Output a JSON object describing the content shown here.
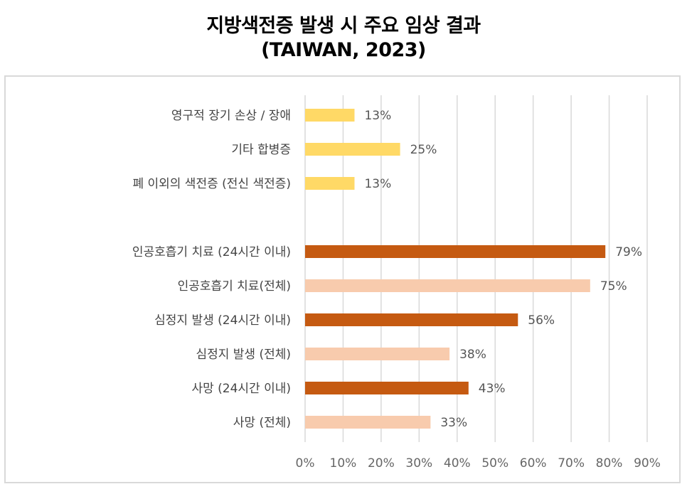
{
  "title_line1": "지방색전증 발생 시 주요 임상 결과",
  "title_line2": "(TAIWAN, 2023)",
  "colors": {
    "yellow": "#FFD966",
    "dark_orange": "#C55A11",
    "light_orange": "#F8CBAD",
    "grid": "#d9d9d9"
  },
  "chart_data": {
    "type": "bar",
    "orientation": "horizontal",
    "xlim": [
      0,
      90
    ],
    "xticks": [
      "0%",
      "10%",
      "20%",
      "30%",
      "40%",
      "50%",
      "60%",
      "70%",
      "80%",
      "90%"
    ],
    "grid": true,
    "categories": [
      "영구적 장기 손상 / 장애",
      "기타 합병증",
      "폐 이외의 색전증 (전신 색전증)",
      "",
      "인공호흡기 치료 (24시간 이내)",
      "인공호흡기 치료(전체)",
      "심정지 발생 (24시간 이내)",
      "심정지 발생 (전체)",
      "사망 (24시간 이내)",
      "사망 (전체)"
    ],
    "values": [
      13,
      25,
      13,
      null,
      79,
      75,
      56,
      38,
      43,
      33
    ],
    "labels": [
      "13%",
      "25%",
      "13%",
      "",
      "79%",
      "75%",
      "56%",
      "38%",
      "43%",
      "33%"
    ],
    "bar_colors": [
      "yellow",
      "yellow",
      "yellow",
      "",
      "dark_orange",
      "light_orange",
      "dark_orange",
      "light_orange",
      "dark_orange",
      "light_orange"
    ]
  }
}
